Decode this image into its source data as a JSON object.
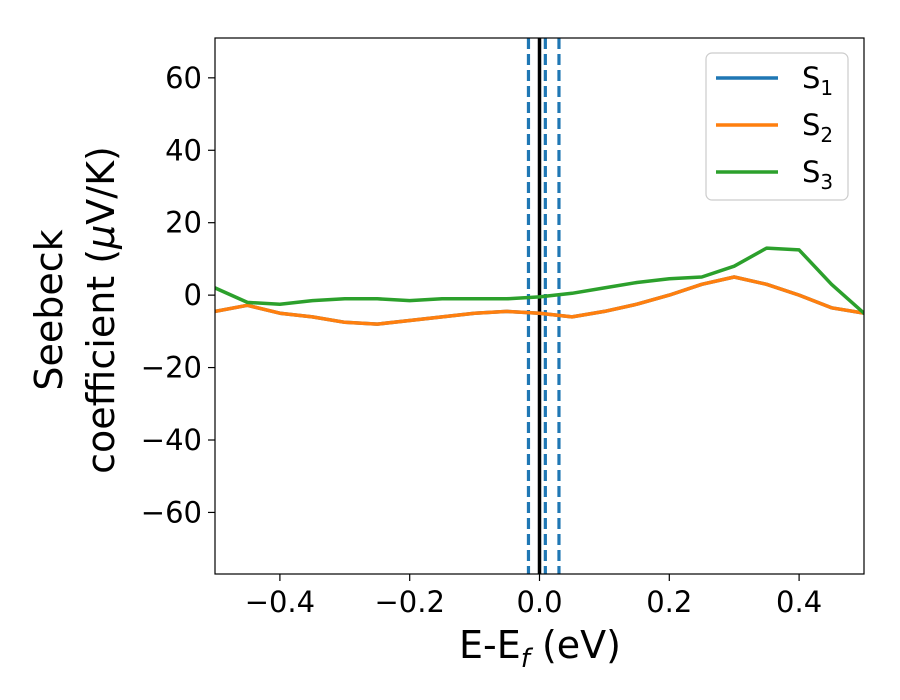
{
  "chart_data": {
    "type": "line",
    "xlabel": "E-E",
    "xlabel_subscript": "f",
    "xlabel_suffix": " (eV)",
    "ylabel_line1": "Seebeck",
    "ylabel_line2": "coefficient  (",
    "ylabel_mu": "μ",
    "ylabel_unit": "V/K)",
    "xlim": [
      -0.5,
      0.5
    ],
    "ylim": [
      -77,
      71
    ],
    "xticks": [
      -0.4,
      -0.2,
      0.0,
      0.2,
      0.4
    ],
    "xtick_labels": [
      "−0.4",
      "−0.2",
      "0.0",
      "0.2",
      "0.4"
    ],
    "yticks": [
      -60,
      -40,
      -20,
      0,
      20,
      40,
      60
    ],
    "ytick_labels": [
      "−60",
      "−40",
      "−20",
      "0",
      "20",
      "40",
      "60"
    ],
    "grid": false,
    "legend_position": "top-right",
    "vlines": [
      {
        "x": 0.0,
        "style": "solid",
        "color": "#000000"
      },
      {
        "x": -0.017,
        "style": "dashed",
        "color": "#1f77b4"
      },
      {
        "x": 0.009,
        "style": "dashed",
        "color": "#1f77b4"
      },
      {
        "x": 0.03,
        "style": "dashed",
        "color": "#1f77b4"
      }
    ],
    "x": [
      -0.5,
      -0.45,
      -0.4,
      -0.35,
      -0.3,
      -0.25,
      -0.2,
      -0.15,
      -0.1,
      -0.05,
      0.0,
      0.05,
      0.1,
      0.15,
      0.2,
      0.25,
      0.3,
      0.35,
      0.4,
      0.45,
      0.5
    ],
    "series": [
      {
        "name": "S",
        "subscript": "1",
        "color": "#1f77b4",
        "values": [
          -4.5,
          -2.8,
          -5.0,
          -6.0,
          -7.5,
          -8.0,
          -7.0,
          -6.0,
          -5.0,
          -4.5,
          -5.0,
          -6.0,
          -4.5,
          -2.5,
          0.0,
          3.0,
          5.0,
          3.0,
          0.0,
          -3.5,
          -5.0
        ]
      },
      {
        "name": "S",
        "subscript": "2",
        "color": "#ff7f0e",
        "values": [
          -4.5,
          -2.8,
          -5.0,
          -6.0,
          -7.5,
          -8.0,
          -7.0,
          -6.0,
          -5.0,
          -4.5,
          -5.0,
          -6.0,
          -4.5,
          -2.5,
          0.0,
          3.0,
          5.0,
          3.0,
          0.0,
          -3.5,
          -5.0
        ]
      },
      {
        "name": "S",
        "subscript": "3",
        "color": "#2ca02c",
        "values": [
          2.0,
          -2.0,
          -2.5,
          -1.5,
          -1.0,
          -1.0,
          -1.5,
          -1.0,
          -1.0,
          -1.0,
          -0.5,
          0.5,
          2.0,
          3.5,
          4.5,
          5.0,
          8.0,
          13.0,
          12.5,
          3.0,
          -5.0
        ]
      }
    ]
  }
}
